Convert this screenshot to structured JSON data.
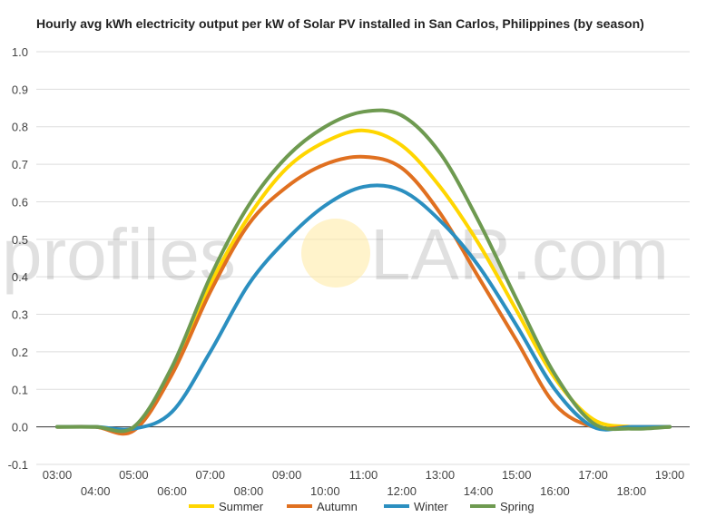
{
  "chart_data": {
    "type": "line",
    "title": "Hourly avg kWh electricity output per kW of Solar PV installed in San Carlos, Philippines (by season)",
    "xlabel": "",
    "ylabel": "",
    "ylim": [
      -0.1,
      1.0
    ],
    "yticks": [
      "1.0",
      "0.9",
      "0.8",
      "0.7",
      "0.6",
      "0.5",
      "0.4",
      "0.3",
      "0.2",
      "0.1",
      "0.0",
      "-0.1"
    ],
    "x_hours": [
      3,
      4,
      5,
      6,
      7,
      8,
      9,
      10,
      11,
      12,
      13,
      14,
      15,
      16,
      17,
      18,
      19
    ],
    "x_labels": [
      "03:00",
      "04:00",
      "05:00",
      "06:00",
      "07:00",
      "08:00",
      "09:00",
      "10:00",
      "11:00",
      "12:00",
      "13:00",
      "14:00",
      "15:00",
      "16:00",
      "17:00",
      "18:00",
      "19:00"
    ],
    "grid": true,
    "legend": "bottom",
    "watermark": {
      "left": "profiles",
      "right": "LAR.com",
      "sun_color": "#FFE9A0"
    },
    "series": [
      {
        "name": "Summer",
        "color": "#FFD600",
        "values": [
          0.0,
          0.0,
          -0.005,
          0.15,
          0.38,
          0.56,
          0.69,
          0.76,
          0.79,
          0.75,
          0.64,
          0.49,
          0.31,
          0.13,
          0.02,
          0.0,
          0.0
        ]
      },
      {
        "name": "Autumn",
        "color": "#E07020",
        "values": [
          0.0,
          0.0,
          -0.01,
          0.14,
          0.36,
          0.54,
          0.64,
          0.7,
          0.72,
          0.69,
          0.57,
          0.4,
          0.23,
          0.06,
          0.0,
          0.0,
          0.0
        ]
      },
      {
        "name": "Winter",
        "color": "#2B8FC0",
        "values": [
          0.0,
          0.0,
          -0.005,
          0.04,
          0.2,
          0.38,
          0.5,
          0.59,
          0.64,
          0.63,
          0.55,
          0.43,
          0.27,
          0.1,
          0.0,
          0.0,
          0.0
        ]
      },
      {
        "name": "Spring",
        "color": "#6E9A50",
        "values": [
          0.0,
          0.0,
          0.0,
          0.16,
          0.4,
          0.59,
          0.72,
          0.8,
          0.84,
          0.83,
          0.73,
          0.55,
          0.34,
          0.14,
          0.01,
          -0.005,
          0.0
        ]
      }
    ]
  }
}
